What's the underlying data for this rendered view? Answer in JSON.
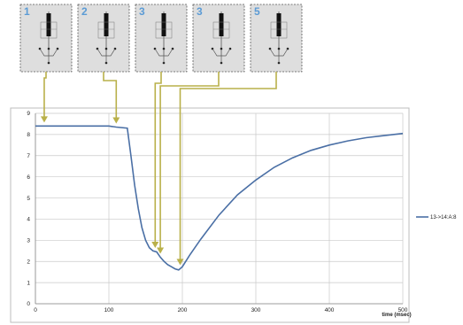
{
  "panels": [
    {
      "label": "1",
      "x_ms": 12
    },
    {
      "label": "2",
      "x_ms": 110
    },
    {
      "label": "3",
      "x_ms": 163
    },
    {
      "label": "3",
      "x_ms": 170
    },
    {
      "label": "5",
      "x_ms": 197
    }
  ],
  "colors": {
    "panel_label": "#5b9bd5",
    "arrow": "#b9b04a",
    "series": "#4a6fa5",
    "grid": "#c9c9c9",
    "panel_bg": "#dedede",
    "panel_border": "#555555"
  },
  "chart_data": {
    "type": "line",
    "title": "",
    "xlabel": "time (msec)",
    "ylabel": "",
    "xlim": [
      0,
      500
    ],
    "ylim": [
      0,
      9
    ],
    "x_ticks": [
      0,
      100,
      200,
      300,
      400,
      500
    ],
    "y_ticks": [
      0,
      1,
      2,
      3,
      4,
      5,
      6,
      7,
      8,
      9
    ],
    "grid": true,
    "legend_position": "right",
    "series": [
      {
        "name": "13->14:A:8",
        "x": [
          0,
          100,
          110,
          125,
          130,
          135,
          140,
          145,
          150,
          155,
          160,
          165,
          170,
          175,
          180,
          185,
          190,
          195,
          200,
          210,
          225,
          250,
          275,
          300,
          325,
          350,
          375,
          400,
          425,
          450,
          475,
          500
        ],
        "y": [
          8.4,
          8.4,
          8.35,
          8.3,
          7.0,
          5.6,
          4.5,
          3.6,
          3.0,
          2.65,
          2.5,
          2.45,
          2.2,
          2.0,
          1.85,
          1.75,
          1.65,
          1.6,
          1.75,
          2.3,
          3.05,
          4.2,
          5.15,
          5.85,
          6.45,
          6.9,
          7.25,
          7.5,
          7.7,
          7.85,
          7.95,
          8.05
        ]
      }
    ]
  }
}
